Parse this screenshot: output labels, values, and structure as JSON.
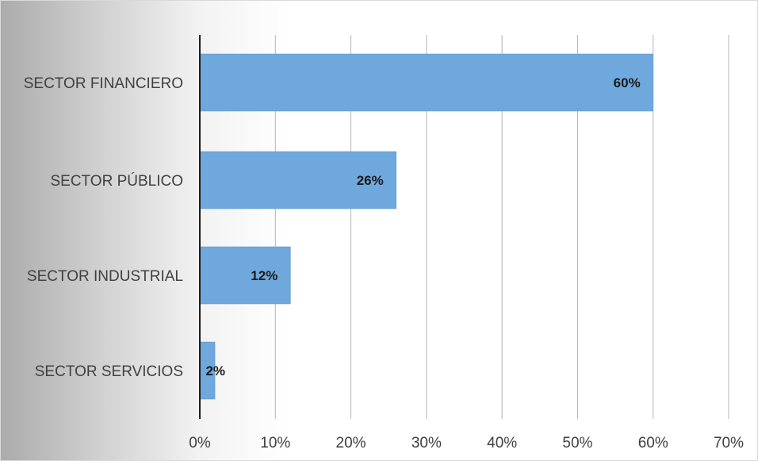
{
  "chart_data": {
    "type": "bar",
    "orientation": "horizontal",
    "title": "",
    "xlabel": "",
    "ylabel": "",
    "categories": [
      "SECTOR FINANCIERO",
      "SECTOR PÚBLICO",
      "SECTOR INDUSTRIAL",
      "SECTOR SERVICIOS"
    ],
    "values": [
      60,
      26,
      12,
      2
    ],
    "data_labels": [
      "60%",
      "26%",
      "12%",
      "2%"
    ],
    "xlim": [
      0,
      70
    ],
    "x_ticks": [
      0,
      10,
      20,
      30,
      40,
      50,
      60,
      70
    ],
    "x_tick_labels": [
      "0%",
      "10%",
      "20%",
      "30%",
      "40%",
      "50%",
      "60%",
      "70%"
    ],
    "grid": "vertical",
    "legend": "none",
    "colors": {
      "bar": "#6fa8dc",
      "bar_edge": "#5b95cc",
      "gridline": "#b4b4b4",
      "axis": "#1f1f1f",
      "text": "#404040"
    }
  }
}
